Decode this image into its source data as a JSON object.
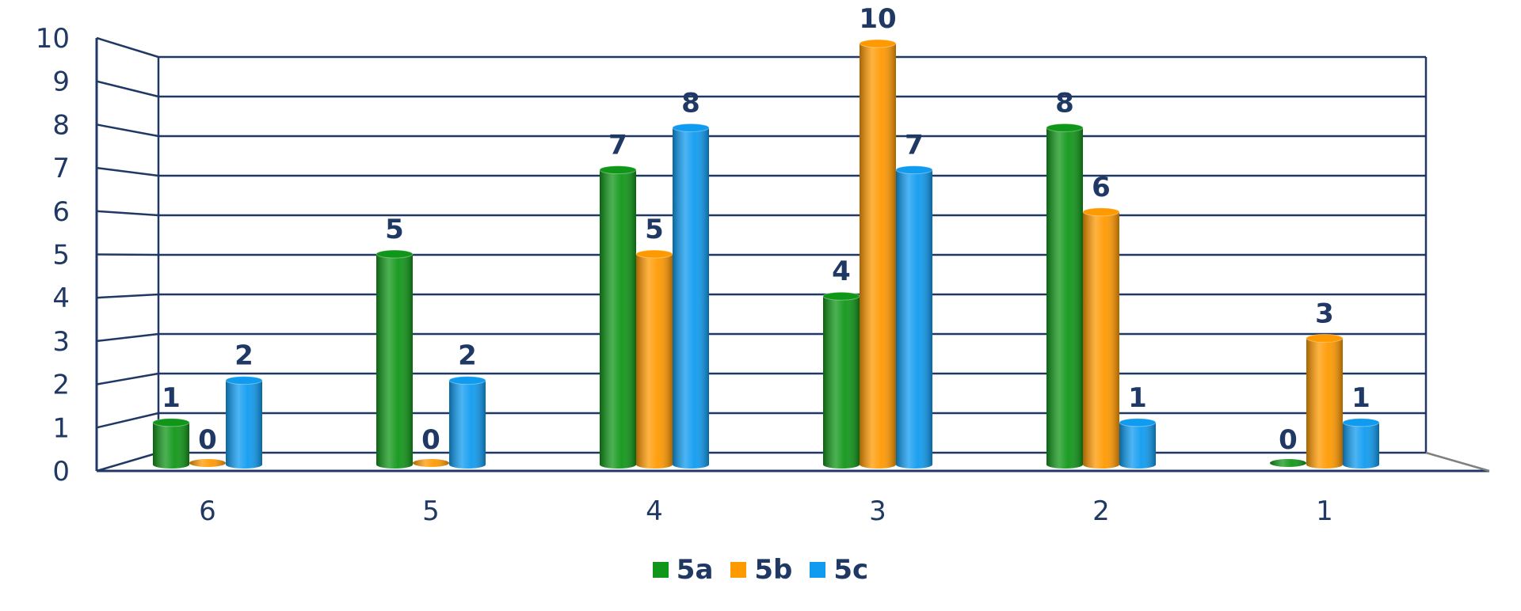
{
  "chart_data": {
    "type": "bar",
    "categories": [
      "6",
      "5",
      "4",
      "3",
      "2",
      "1"
    ],
    "series": [
      {
        "name": "5a",
        "values": [
          1,
          5,
          7,
          4,
          8,
          0
        ],
        "color": "#109618"
      },
      {
        "name": "5b",
        "values": [
          0,
          0,
          5,
          10,
          6,
          3
        ],
        "color": "#ff9900"
      },
      {
        "name": "5c",
        "values": [
          2,
          2,
          8,
          7,
          1,
          1
        ],
        "color": "#0f9bf0"
      }
    ],
    "ylim": [
      0,
      10
    ],
    "yticks": [
      "0",
      "1",
      "2",
      "3",
      "4",
      "5",
      "6",
      "7",
      "8",
      "9",
      "10"
    ],
    "grid": true,
    "legend_position": "bottom",
    "text_color": "#1f3864"
  }
}
